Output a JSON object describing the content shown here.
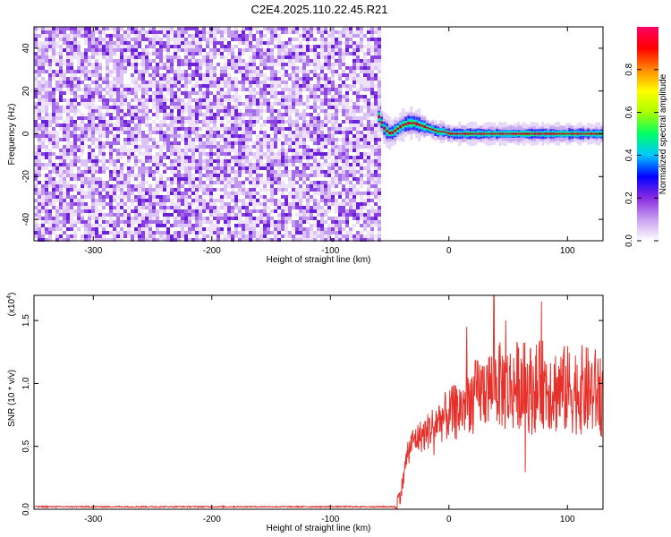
{
  "title": "C2E4.2025.110.22.45.R21",
  "chart_data": [
    {
      "type": "heatmap",
      "xlabel": "Height of straight line (km)",
      "ylabel": "Frequency (Hz)",
      "xlim": [
        -350,
        130
      ],
      "ylim": [
        -50,
        50
      ],
      "x_ticks": [
        "-300",
        "-200",
        "-100",
        "0",
        "100"
      ],
      "x_tick_values": [
        -300,
        -200,
        -100,
        0,
        100
      ],
      "y_ticks": [
        "-40",
        "-20",
        "0",
        "20",
        "40"
      ],
      "y_tick_values": [
        -40,
        -20,
        0,
        20,
        40
      ],
      "colorbar": {
        "label": "Normalized spectral amplitude",
        "range": [
          0.0,
          1.0
        ],
        "ticks": [
          "0.0",
          "0.2",
          "0.4",
          "0.6",
          "0.8"
        ],
        "tick_values": [
          0.0,
          0.2,
          0.4,
          0.6,
          0.8
        ],
        "colors": [
          "#ffffff",
          "#c8a0f0",
          "#8a2be2",
          "#0000ff",
          "#00c8ff",
          "#00ff66",
          "#aaff00",
          "#ffff00",
          "#ff8800",
          "#ff0000",
          "#ff0066"
        ]
      },
      "noise_region_x": [
        -350,
        -60
      ],
      "signal_ridge": {
        "x": [
          -60,
          -55,
          -50,
          -45,
          -40,
          -35,
          -30,
          -25,
          -20,
          -15,
          -10,
          -5,
          0,
          20,
          40,
          60,
          80,
          100,
          130
        ],
        "freq": [
          8,
          2,
          0,
          2,
          4,
          5,
          5,
          4,
          3,
          2,
          1,
          1,
          0,
          0,
          0,
          0,
          0,
          0,
          0
        ]
      }
    },
    {
      "type": "line",
      "xlabel": "Height of straight line (km)",
      "ylabel": "SNR (10 * v/v)",
      "y_multiplier": "(x10",
      "y_multiplier_exp": "4",
      "y_multiplier_close": ")",
      "xlim": [
        -350,
        130
      ],
      "ylim": [
        0.0,
        1.7
      ],
      "x_ticks": [
        "-300",
        "-200",
        "-100",
        "0",
        "100"
      ],
      "x_tick_values": [
        -300,
        -200,
        -100,
        0,
        100
      ],
      "y_ticks": [
        "0.0",
        "0.5",
        "1.0",
        "1.5"
      ],
      "y_tick_values": [
        0.0,
        0.5,
        1.0,
        1.5
      ],
      "series": [
        {
          "color": "#e8302a",
          "trend_x": [
            -350,
            -45,
            -40,
            -35,
            -30,
            -20,
            -10,
            0,
            10,
            20,
            30,
            40,
            50,
            60,
            70,
            80,
            90,
            100,
            110,
            130
          ],
          "trend_y": [
            0.02,
            0.02,
            0.15,
            0.45,
            0.55,
            0.6,
            0.7,
            0.75,
            0.8,
            0.9,
            0.95,
            1.0,
            0.95,
            1.0,
            0.95,
            1.0,
            0.95,
            0.95,
            0.95,
            0.92
          ],
          "peaks_x": [
            38,
            78,
            15,
            48
          ],
          "peaks_y": [
            1.7,
            1.65,
            1.45,
            1.5
          ]
        }
      ]
    }
  ]
}
